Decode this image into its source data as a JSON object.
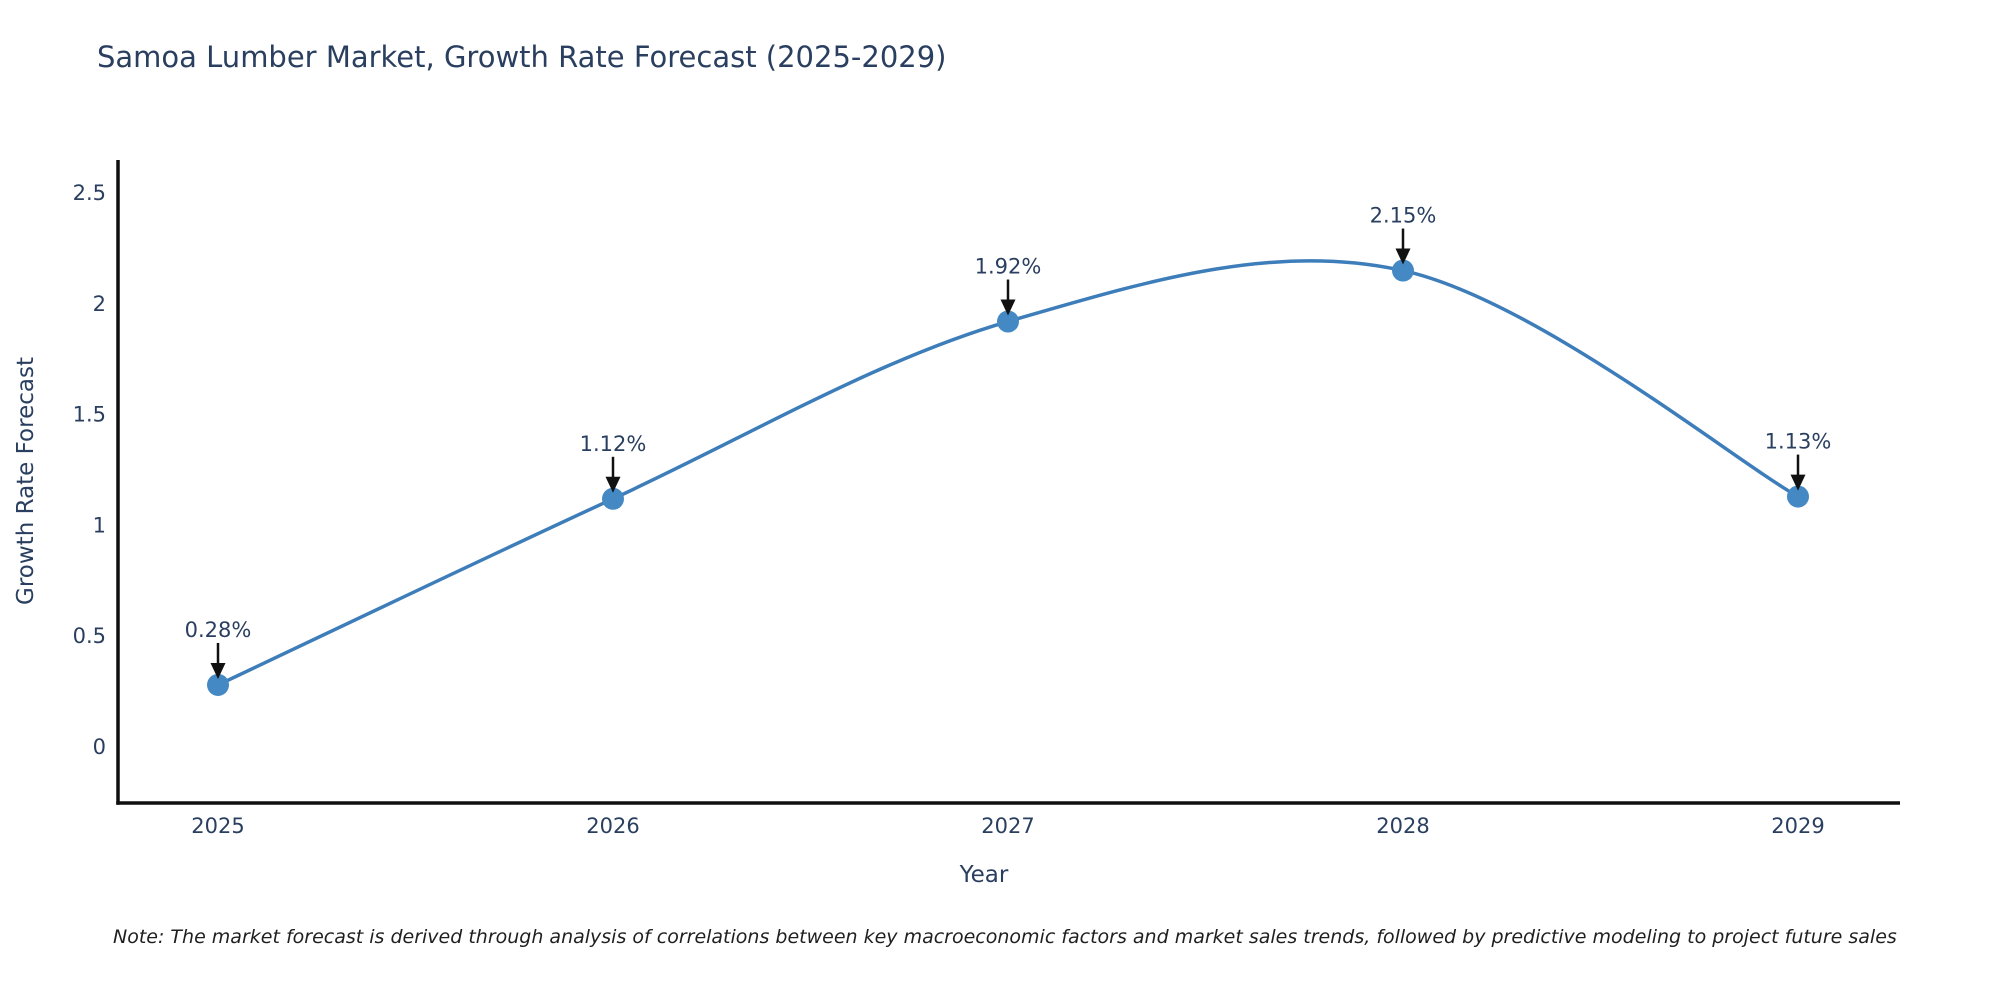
{
  "chart_data": {
    "type": "line",
    "line_shape": "spline",
    "title": "Samoa Lumber Market, Growth Rate Forecast (2025-2029)",
    "xlabel": "Year",
    "ylabel": "Growth Rate Forecast",
    "categories": [
      "2025",
      "2026",
      "2027",
      "2028",
      "2029"
    ],
    "values": [
      0.28,
      1.12,
      1.92,
      2.15,
      1.13
    ],
    "point_labels": [
      "0.28%",
      "1.12%",
      "1.92%",
      "2.15%",
      "1.13%"
    ],
    "yticks": [
      0,
      0.5,
      1,
      1.5,
      2,
      2.5
    ],
    "ytick_labels": [
      "0",
      "0.5",
      "1",
      "1.5",
      "2",
      "2.5"
    ],
    "ylim": [
      -0.26,
      2.65
    ],
    "grid": false,
    "legend": "none",
    "markers": true,
    "annotation_arrows": true,
    "colors": {
      "line": "#3d7db9",
      "marker": "#4489c4",
      "title_text": "#2a3f5f",
      "tick_text": "#2a3f5f",
      "axis_line": "#0f0f0f",
      "arrow": "#111111",
      "note_text": "#1f1f1f",
      "background": "#ffffff"
    }
  },
  "note": {
    "text": "Note: The market forecast is derived through analysis of correlations between key macroeconomic factors and market sales trends, followed by predictive modeling to project future sales"
  }
}
